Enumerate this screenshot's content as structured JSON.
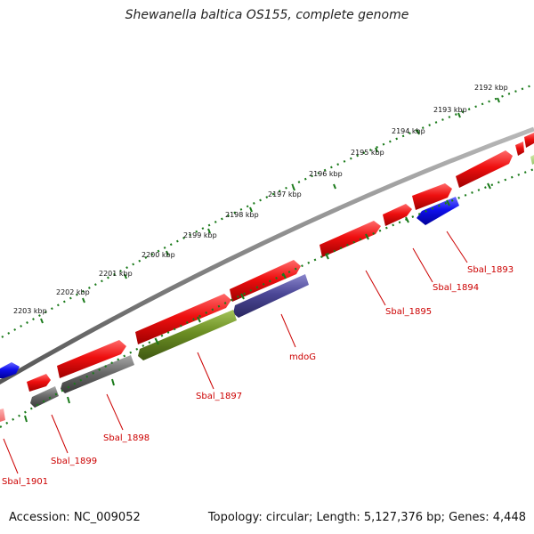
{
  "title": "Shewanella baltica OS155, complete genome",
  "footer": {
    "accession": "Accession: NC_009052",
    "summary": "Topology: circular; Length: 5,127,376 bp; Genes: 4,448"
  },
  "colors": {
    "forward_gene": "#ee1111",
    "forward_gene_dark": "#9a0000",
    "reverse_gene": "#1111ee",
    "gray_gene": "#6a6a6a",
    "olive_gene": "#6b8e23",
    "slate_gene": "#4b4796",
    "backbone": "#8a8a8a",
    "ruler": "#1a7a1a",
    "label": "#cc0000"
  },
  "ruler_ticks": [
    {
      "label": "2192 kbp",
      "kbp": 2192
    },
    {
      "label": "2193 kbp",
      "kbp": 2193
    },
    {
      "label": "2194 kbp",
      "kbp": 2194
    },
    {
      "label": "2195 kbp",
      "kbp": 2195
    },
    {
      "label": "2196 kbp",
      "kbp": 2196
    },
    {
      "label": "2197 kbp",
      "kbp": 2197
    },
    {
      "label": "2198 kbp",
      "kbp": 2198
    },
    {
      "label": "2199 kbp",
      "kbp": 2199
    },
    {
      "label": "2200 kbp",
      "kbp": 2200
    },
    {
      "label": "2201 kbp",
      "kbp": 2201
    },
    {
      "label": "2202 kbp",
      "kbp": 2202
    },
    {
      "label": "2203 kbp",
      "kbp": 2203
    }
  ],
  "gene_labels": [
    {
      "name": "Sbal_1893"
    },
    {
      "name": "Sbal_1894"
    },
    {
      "name": "Sbal_1895"
    },
    {
      "name": "mdoG"
    },
    {
      "name": "Sbal_1897"
    },
    {
      "name": "Sbal_1898"
    },
    {
      "name": "Sbal_1899"
    },
    {
      "name": "Sbal_1901"
    }
  ]
}
